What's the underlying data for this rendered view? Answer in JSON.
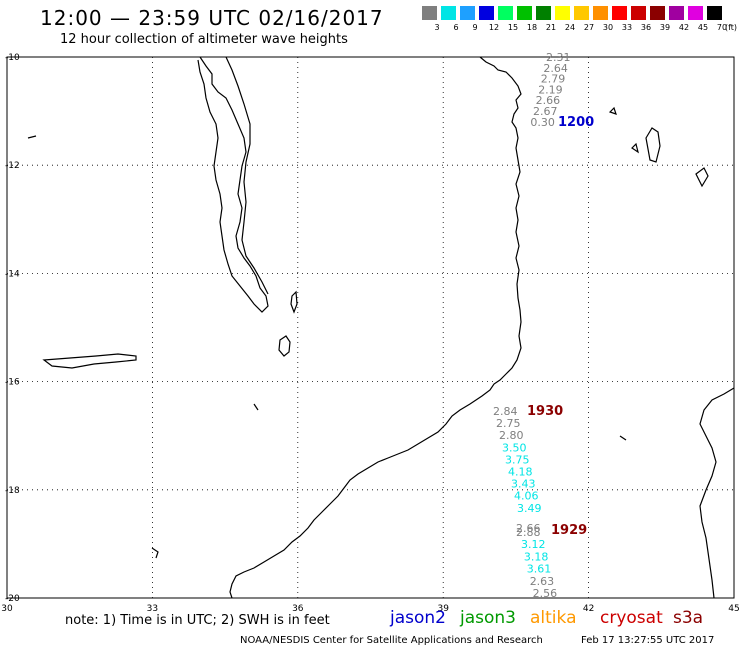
{
  "header": {
    "title": "12:00 — 23:59 UTC 02/16/2017",
    "subtitle": "12 hour collection of altimeter wave heights"
  },
  "colorbar": {
    "unit": "(ft)",
    "swatches": [
      {
        "color": "#7f7f7f",
        "label": "3"
      },
      {
        "color": "#00e5e5",
        "label": "6"
      },
      {
        "color": "#1ea0ff",
        "label": "9"
      },
      {
        "color": "#0000e0",
        "label": "12"
      },
      {
        "color": "#00ff60",
        "label": "15"
      },
      {
        "color": "#00c000",
        "label": "18"
      },
      {
        "color": "#008000",
        "label": "21"
      },
      {
        "color": "#ffff00",
        "label": "24"
      },
      {
        "color": "#ffc800",
        "label": "27"
      },
      {
        "color": "#ff9000",
        "label": "30"
      },
      {
        "color": "#ff0000",
        "label": "33"
      },
      {
        "color": "#cc0000",
        "label": "36"
      },
      {
        "color": "#8b0000",
        "label": "39"
      },
      {
        "color": "#a000a0",
        "label": "42"
      },
      {
        "color": "#e000e0",
        "label": "45"
      },
      {
        "color": "#000000",
        "label": "70"
      }
    ]
  },
  "map": {
    "lon_ticks": [
      "30",
      "33",
      "36",
      "39",
      "42",
      "45"
    ],
    "lat_ticks": [
      "-10",
      "-12",
      "-14",
      "-16",
      "-18",
      "-20"
    ],
    "lon_range": [
      30,
      45
    ],
    "lat_range": [
      -20,
      -10
    ]
  },
  "passes": [
    {
      "label": "1200",
      "color": "#0000cc"
    },
    {
      "label": "1930",
      "color": "#8b0000"
    },
    {
      "label": "1929",
      "color": "#8b0000"
    }
  ],
  "observations": {
    "track_1200": [
      "2.31",
      "2.64",
      "2.79",
      "2.19",
      "2.66",
      "2.67",
      "0.30"
    ],
    "track_1930": [
      "2.84",
      "2.75",
      "2.80",
      "3.50",
      "3.75",
      "4.18",
      "3.43",
      "4.06",
      "3.49",
      "2.66",
      "2.88",
      "3.12",
      "3.18",
      "3.61",
      "2.63",
      "2.56"
    ]
  },
  "footer": {
    "note": "note: 1) Time is in UTC; 2) SWH is in feet",
    "satellites": [
      {
        "name": "jason2",
        "color": "#0000cc"
      },
      {
        "name": "jason3",
        "color": "#009900"
      },
      {
        "name": "altika",
        "color": "#ff9900"
      },
      {
        "name": "cryosat",
        "color": "#cc0000"
      },
      {
        "name": "s3a",
        "color": "#8b0000"
      }
    ],
    "credit": "NOAA/NESDIS Center for Satellite Applications and Research",
    "timestamp": "Feb 17 13:27:55 UTC 2017"
  }
}
